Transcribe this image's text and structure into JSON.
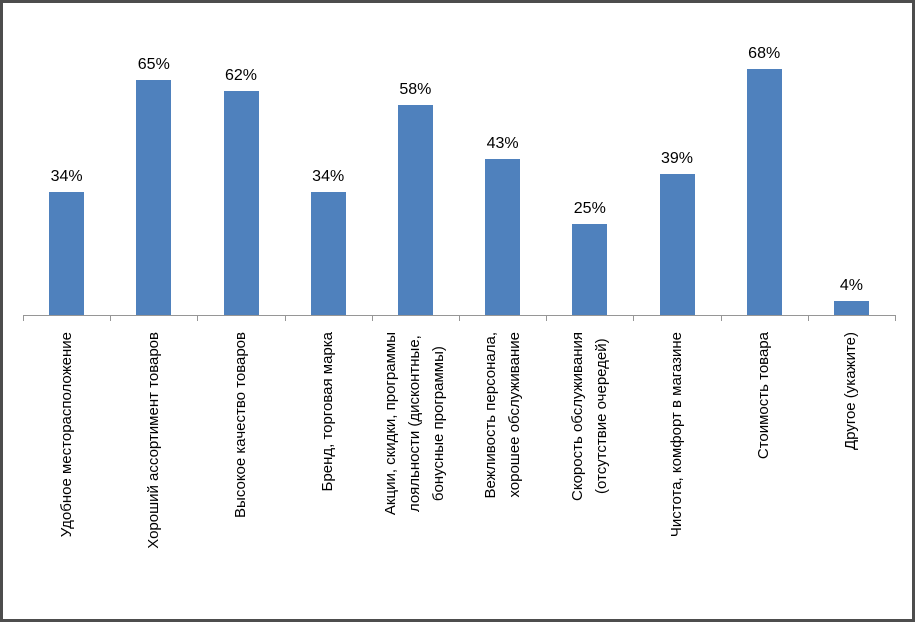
{
  "chart_data": {
    "type": "bar",
    "title": "",
    "xlabel": "",
    "ylabel": "",
    "categories": [
      "Удобное месторасположение",
      "Хороший ассортимент товаров",
      "Высокое качество товаров",
      "Бренд, торговая марка",
      "Акции, скидки, программы лояльности (дисконтные, бонусные программы)",
      "Вежливость персонала, хорошее обслуживание",
      "Скорость обслуживания (отсутствие очередей)",
      "Чистота, комфорт в магазине",
      "Стоимость товара",
      "Другое (укажите)"
    ],
    "category_lines": [
      [
        "Удобное месторасположение"
      ],
      [
        "Хороший ассортимент товаров"
      ],
      [
        "Высокое качество товаров"
      ],
      [
        "Бренд, торговая марка"
      ],
      [
        "Акции, скидки, программы",
        "лояльности (дисконтные,",
        "бонусные программы)"
      ],
      [
        "Вежливость персонала,",
        "хорошее обслуживание"
      ],
      [
        "Скорость обслуживания",
        "(отсутствие очередей)"
      ],
      [
        "Чистота, комфорт в магазине"
      ],
      [
        "Стоимость товара"
      ],
      [
        "Другое (укажите)"
      ]
    ],
    "values": [
      34,
      65,
      62,
      34,
      58,
      43,
      25,
      39,
      68,
      4
    ],
    "value_labels": [
      "34%",
      "65%",
      "62%",
      "34%",
      "58%",
      "43%",
      "25%",
      "39%",
      "68%",
      "4%"
    ],
    "ylim": [
      0,
      86
    ],
    "grid": false,
    "legend": false,
    "bar_color": "#4F81BD",
    "axis_color": "#969696",
    "label_color": "#000000"
  }
}
